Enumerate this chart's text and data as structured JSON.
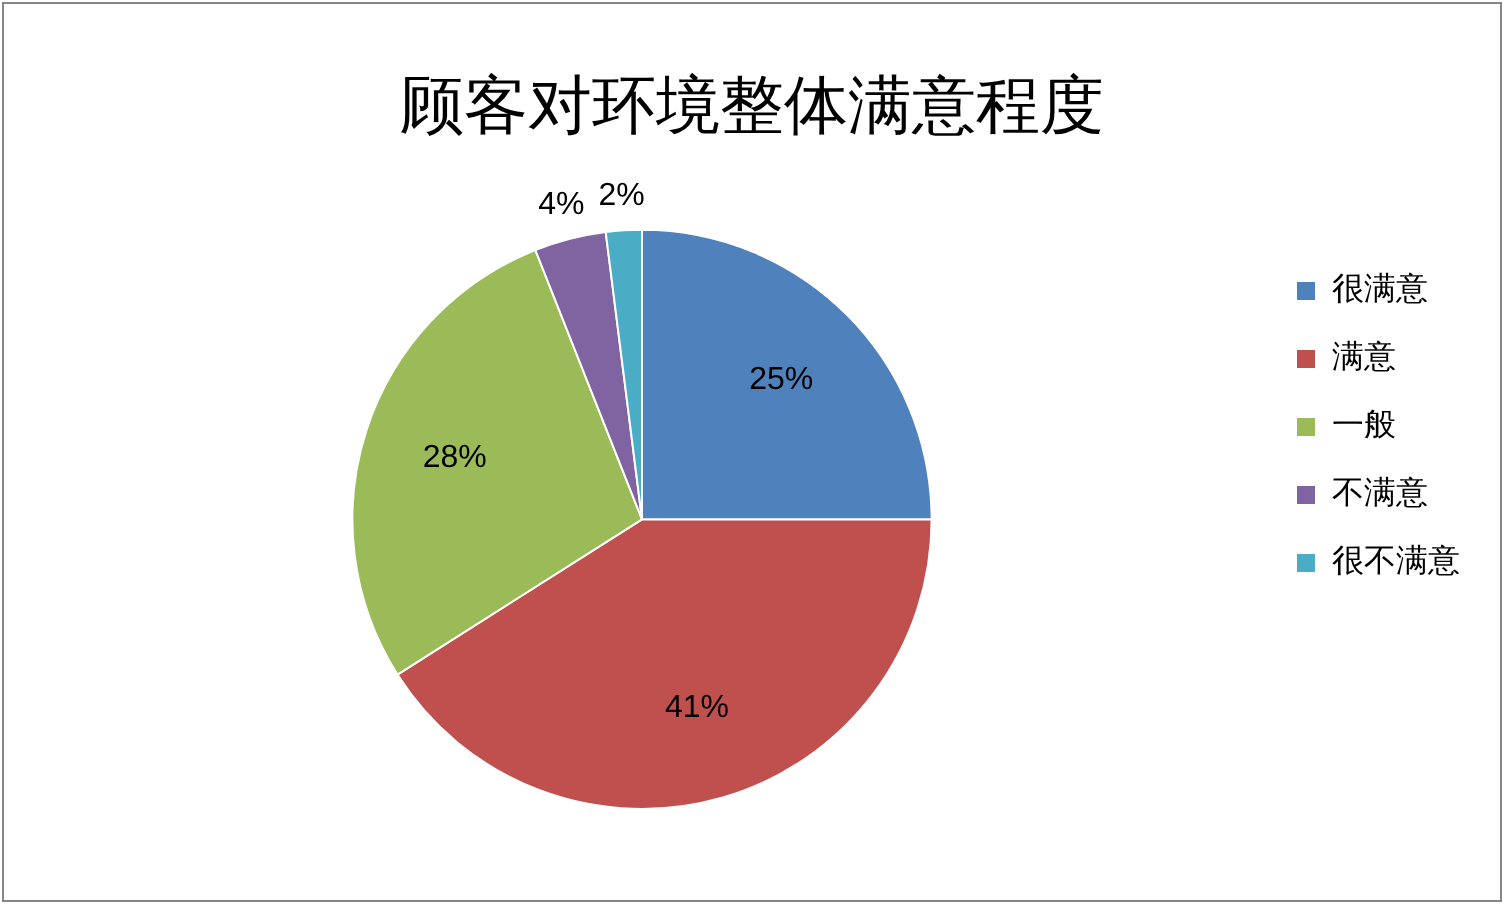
{
  "chart_data": {
    "type": "pie",
    "title": "顾客对环境整体满意程度",
    "categories": [
      "很满意",
      "满意",
      "一般",
      "不满意",
      "很不满意"
    ],
    "values": [
      25,
      41,
      28,
      4,
      2
    ],
    "colors": [
      "#4f81bd",
      "#c0504d",
      "#9bbb59",
      "#8064a2",
      "#4bacc6"
    ],
    "value_labels": [
      "25%",
      "41%",
      "28%",
      "4%",
      "2%"
    ],
    "legend": "right"
  }
}
